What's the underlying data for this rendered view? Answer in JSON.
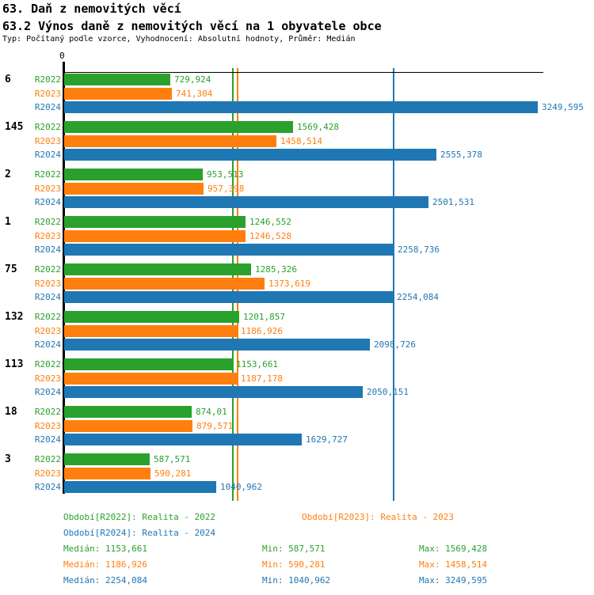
{
  "header": {
    "title_line1": "63. Daň z nemovitých věcí",
    "title_line2": "63.2 Výnos daně z nemovitých věcí na 1 obyvatele obce",
    "subtitle": "Typ: Počítaný podle vzorce, Vyhodnocení: Absolutní hodnoty, Průměr: Medián"
  },
  "colors": {
    "green": "#2ba12d",
    "orange": "#ff7f0e",
    "blue": "#1f77b4",
    "axis": "#000000"
  },
  "chart_data": {
    "type": "bar",
    "orientation": "horizontal",
    "axis_zero_label": "0",
    "xlim": [
      0,
      3288
    ],
    "categories": [
      "6",
      "145",
      "2",
      "1",
      "75",
      "132",
      "113",
      "18",
      "3"
    ],
    "series": [
      {
        "name": "R2022",
        "color_key": "green",
        "values": [
          729.924,
          1569.428,
          953.513,
          1246.552,
          1285.326,
          1201.857,
          1153.661,
          874.01,
          587.571
        ],
        "labels": [
          "729,924",
          "1569,428",
          "953,513",
          "1246,552",
          "1285,326",
          "1201,857",
          "1153,661",
          "874,01",
          "587,571"
        ]
      },
      {
        "name": "R2023",
        "color_key": "orange",
        "values": [
          741.304,
          1458.514,
          957.398,
          1246.528,
          1373.619,
          1186.926,
          1187.178,
          879.571,
          590.281
        ],
        "labels": [
          "741,304",
          "1458,514",
          "957,398",
          "1246,528",
          "1373,619",
          "1186,926",
          "1187,178",
          "879,571",
          "590,281"
        ]
      },
      {
        "name": "R2024",
        "color_key": "blue",
        "values": [
          3249.595,
          2555.378,
          2501.531,
          2258.736,
          2254.084,
          2098.726,
          2050.151,
          1629.727,
          1040.962
        ],
        "labels": [
          "3249,595",
          "2555,378",
          "2501,531",
          "2258,736",
          "2254,084",
          "2098,726",
          "2050,151",
          "1629,727",
          "1040,962"
        ]
      }
    ],
    "median_lines": [
      {
        "value": 1153.661,
        "color_key": "green"
      },
      {
        "value": 1186.926,
        "color_key": "orange"
      },
      {
        "value": 2254.084,
        "color_key": "blue"
      }
    ]
  },
  "legend": {
    "items": [
      {
        "text": "Období[R2022]: Realita - 2022",
        "color_key": "green",
        "row": 0,
        "col": 0
      },
      {
        "text": "Období[R2023]: Realita - 2023",
        "color_key": "orange",
        "row": 0,
        "col": 1
      },
      {
        "text": "Období[R2024]: Realita - 2024",
        "color_key": "blue",
        "row": 1,
        "col": 0
      }
    ]
  },
  "stats": {
    "rows": [
      {
        "color_key": "green",
        "median": "Medián: 1153,661",
        "min": "Min: 587,571",
        "max": "Max: 1569,428"
      },
      {
        "color_key": "orange",
        "median": "Medián: 1186,926",
        "min": "Min: 590,281",
        "max": "Max: 1458,514"
      },
      {
        "color_key": "blue",
        "median": "Medián: 2254,084",
        "min": "Min: 1040,962",
        "max": "Max: 3249,595"
      }
    ]
  }
}
